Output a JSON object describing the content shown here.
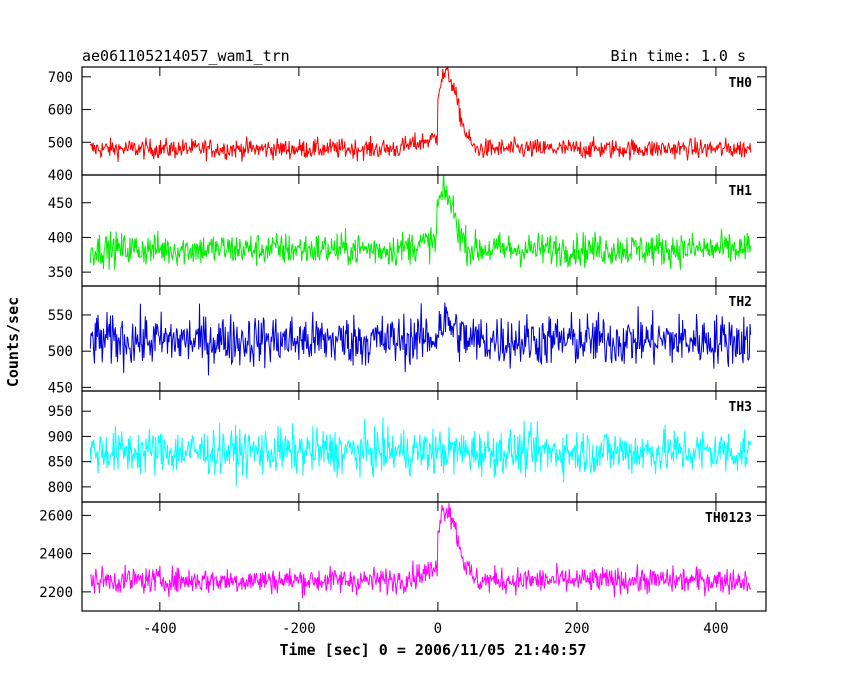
{
  "chart_data": {
    "type": "line",
    "title_left": "ae061105214057_wam1_trn",
    "title_right": "Bin time: 1.0 s",
    "xlabel": "Time [sec] 0 = 2006/11/05 21:40:57",
    "ylabel": "Counts/sec",
    "xlim": [
      -512,
      472
    ],
    "x_ticks": [
      -400,
      -200,
      0,
      200,
      400
    ],
    "x_range": [
      -500,
      450
    ],
    "panels": [
      {
        "name": "TH0",
        "color": "#ff0000",
        "ylim": [
          400,
          730
        ],
        "yticks": [
          400,
          500,
          600,
          700
        ],
        "baseline": 480,
        "noise": 28,
        "peak": 230,
        "peak_x": 12,
        "peak_width": 16
      },
      {
        "name": "TH1",
        "color": "#00ee00",
        "ylim": [
          330,
          490
        ],
        "yticks": [
          350,
          400,
          450
        ],
        "baseline": 383,
        "noise": 22,
        "peak": 80,
        "peak_x": 10,
        "peak_width": 14
      },
      {
        "name": "TH2",
        "color": "#0000dd",
        "ylim": [
          445,
          590
        ],
        "yticks": [
          450,
          500,
          550
        ],
        "baseline": 515,
        "noise": 33,
        "peak": 25,
        "peak_x": 10,
        "peak_width": 14
      },
      {
        "name": "TH3",
        "color": "#00ffff",
        "ylim": [
          770,
          990
        ],
        "yticks": [
          800,
          850,
          900,
          950
        ],
        "baseline": 870,
        "noise": 42,
        "peak": 0,
        "peak_x": 10,
        "peak_width": 14
      },
      {
        "name": "TH0123",
        "color": "#ff00ff",
        "ylim": [
          2100,
          2670
        ],
        "yticks": [
          2200,
          2400,
          2600
        ],
        "baseline": 2260,
        "noise": 62,
        "peak": 380,
        "peak_x": 12,
        "peak_width": 16
      }
    ]
  }
}
